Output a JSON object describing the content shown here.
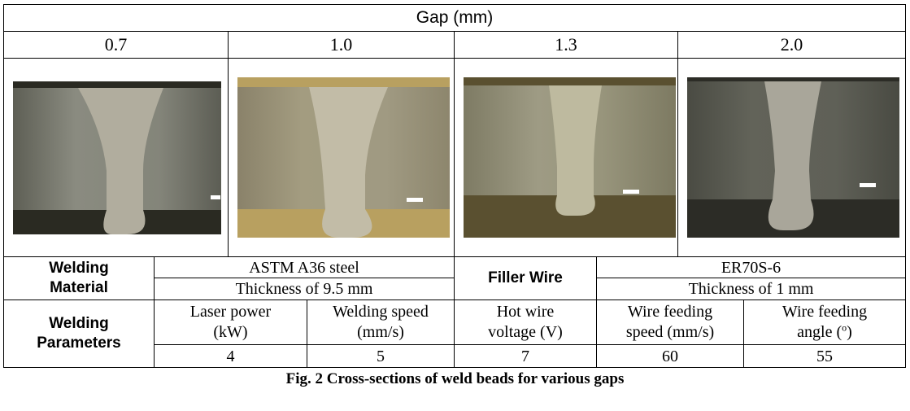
{
  "header": {
    "title": "Gap (mm)",
    "gaps": [
      "0.7",
      "1.0",
      "1.3",
      "2.0"
    ]
  },
  "table": {
    "material_label": [
      "Welding",
      "Material"
    ],
    "material": [
      "ASTM A36 steel",
      "Thickness of 9.5 mm"
    ],
    "filler_label": "Filler Wire",
    "filler": [
      "ER70S-6",
      "Thickness of 1 mm"
    ],
    "parameters_label": [
      "Welding",
      "Parameters"
    ],
    "parameters": [
      {
        "name": [
          "Laser power",
          "(kW)"
        ],
        "value": "4"
      },
      {
        "name": [
          "Welding speed",
          "(mm/s)"
        ],
        "value": "5"
      },
      {
        "name": [
          "Hot wire",
          "voltage (V)"
        ],
        "value": "7"
      },
      {
        "name": [
          "Wire feeding",
          "speed (mm/s)"
        ],
        "value": "60"
      },
      {
        "name": [
          "Wire feeding",
          "angle ("
        ],
        "sup": "o",
        "close": ")",
        "value": "55"
      }
    ]
  },
  "caption": "Fig. 2 Cross-sections of weld beads for various gaps"
}
